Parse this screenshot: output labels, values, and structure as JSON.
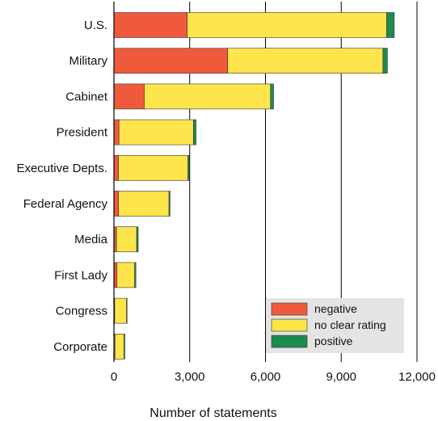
{
  "chart_data": {
    "type": "bar",
    "orientation": "horizontal",
    "stacked": true,
    "categories": [
      "U.S.",
      "Military",
      "Cabinet",
      "President",
      "Executive Depts.",
      "Federal Agency",
      "Media",
      "First Lady",
      "Congress",
      "Corporate"
    ],
    "series": [
      {
        "name": "negative",
        "color": "#f05a3c",
        "values": [
          2900,
          4500,
          1200,
          200,
          180,
          180,
          100,
          120,
          30,
          40
        ]
      },
      {
        "name": "no clear rating",
        "color": "#fde44a",
        "values": [
          7900,
          6150,
          5000,
          2950,
          2750,
          2000,
          800,
          700,
          470,
          360
        ]
      },
      {
        "name": "positive",
        "color": "#1e8a4e",
        "values": [
          300,
          180,
          120,
          100,
          60,
          40,
          60,
          50,
          20,
          30
        ]
      }
    ],
    "xlabel": "Number of statements",
    "ylabel": "",
    "xlim": [
      0,
      12000
    ],
    "xticks": [
      0,
      3000,
      6000,
      9000,
      12000
    ],
    "xtick_labels": [
      "0",
      "3,000",
      "6,000",
      "9,000",
      "12,000"
    ],
    "grid": "vertical lines at ticks",
    "legend_position": "bottom-right"
  }
}
